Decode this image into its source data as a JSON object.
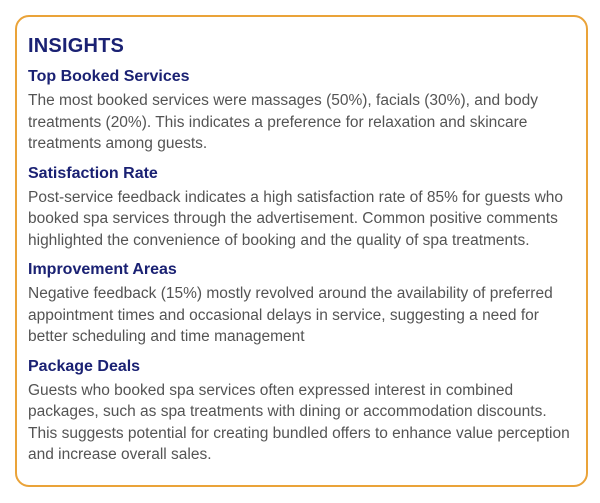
{
  "card": {
    "title": "INSIGHTS",
    "colors": {
      "border": "#EAA339",
      "heading": "#1A2173",
      "body_text": "#545454",
      "background": "#FFFFFF"
    },
    "sections": [
      {
        "heading": "Top Booked Services",
        "body": "The most booked services were massages (50%), facials (30%), and body treatments (20%). This indicates a preference for relaxation and skincare treatments among guests."
      },
      {
        "heading": "Satisfaction Rate",
        "body": "Post-service feedback indicates a high satisfaction rate of 85% for guests who booked spa services through the advertisement. Common positive comments highlighted the convenience of booking and the quality of spa treatments."
      },
      {
        "heading": "Improvement Areas",
        "body": "Negative feedback (15%) mostly revolved around the availability of preferred appointment times and occasional delays in service, suggesting a need for better scheduling and time management"
      },
      {
        "heading": "Package Deals",
        "body": "Guests who booked spa services often expressed interest in combined packages, such as spa treatments with dining or accommodation discounts. This suggests potential for creating bundled offers to enhance value perception and increase overall sales."
      }
    ]
  }
}
